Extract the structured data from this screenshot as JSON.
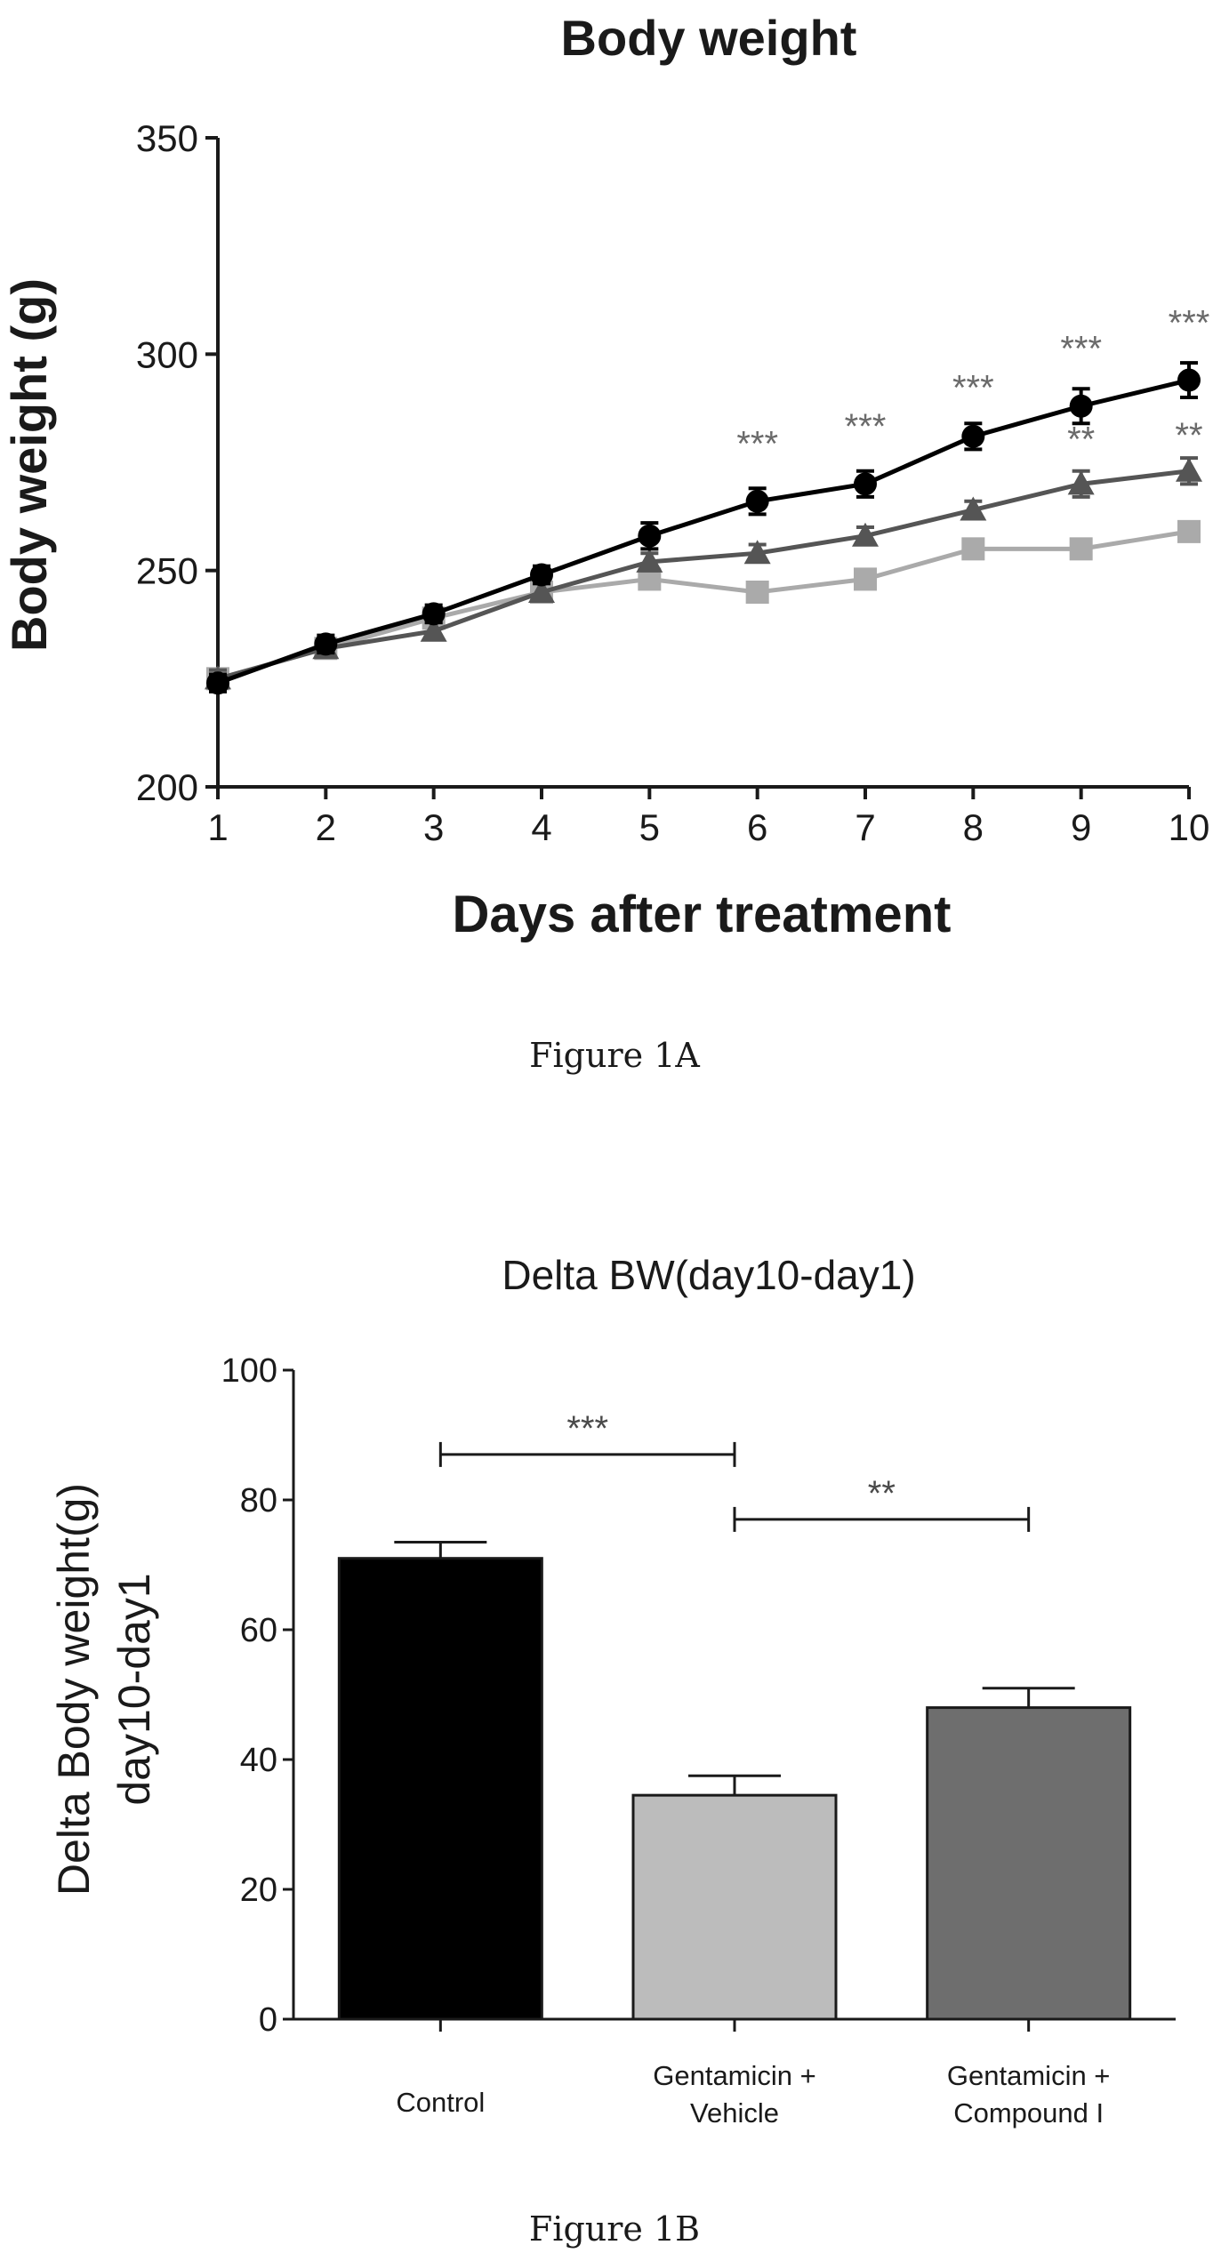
{
  "figures": {
    "caption_a": "Figure 1A",
    "caption_b": "Figure 1B"
  },
  "chart_data": [
    {
      "type": "line",
      "title": "Body weight",
      "xlabel": "Days after treatment",
      "ylabel": "Body weight (g)",
      "ylim": [
        200,
        350
      ],
      "yticks": [
        200,
        250,
        300,
        350
      ],
      "x": [
        1,
        2,
        3,
        4,
        5,
        6,
        7,
        8,
        9,
        10
      ],
      "grid": false,
      "legend": "none",
      "series": [
        {
          "color": "#000000",
          "marker": "circle",
          "values": [
            224,
            233,
            240,
            249,
            258,
            266,
            270,
            281,
            288,
            294
          ],
          "errors": [
            2,
            2,
            2,
            2,
            3,
            3,
            3,
            3,
            4,
            4
          ]
        },
        {
          "color": "#555555",
          "marker": "triangle",
          "values": [
            225,
            232,
            236,
            245,
            252,
            254,
            258,
            264,
            270,
            273
          ],
          "errors": [
            2,
            2,
            2,
            2,
            2,
            2,
            2,
            2,
            3,
            3
          ]
        },
        {
          "color": "#aaaaaa",
          "marker": "square",
          "values": [
            225,
            232,
            239,
            245,
            248,
            245,
            248,
            255,
            255,
            259
          ],
          "errors": [
            2,
            2,
            2,
            2,
            2,
            2,
            2,
            2,
            2,
            2
          ]
        }
      ],
      "annotations": [
        {
          "x": 6,
          "y": 279,
          "text": "***"
        },
        {
          "x": 7,
          "y": 283,
          "text": "***"
        },
        {
          "x": 8,
          "y": 292,
          "text": "***"
        },
        {
          "x": 9,
          "y": 301,
          "text": "***"
        },
        {
          "x": 10,
          "y": 307,
          "text": "***"
        },
        {
          "x": 9,
          "y": 280,
          "text": "**"
        },
        {
          "x": 10,
          "y": 281,
          "text": "**"
        }
      ]
    },
    {
      "type": "bar",
      "title": "Delta BW(day10-day1)",
      "ylabel_line1": "Delta Body weight(g)",
      "ylabel_line2": "day10-day1",
      "categories": [
        [
          "Control"
        ],
        [
          "Gentamicin +",
          "Vehicle"
        ],
        [
          "Gentamicin +",
          "Compound I"
        ]
      ],
      "values": [
        71,
        34.5,
        48
      ],
      "errors": [
        2.5,
        3,
        3
      ],
      "colors": [
        "#000000",
        "#bcbcbc",
        "#6e6e6e"
      ],
      "ylim": [
        0,
        100
      ],
      "yticks": [
        0,
        20,
        40,
        60,
        80,
        100
      ],
      "brackets": [
        {
          "from": 0,
          "to": 1,
          "y": 87,
          "text": "***"
        },
        {
          "from": 1,
          "to": 2,
          "y": 77,
          "text": "**"
        }
      ]
    }
  ]
}
